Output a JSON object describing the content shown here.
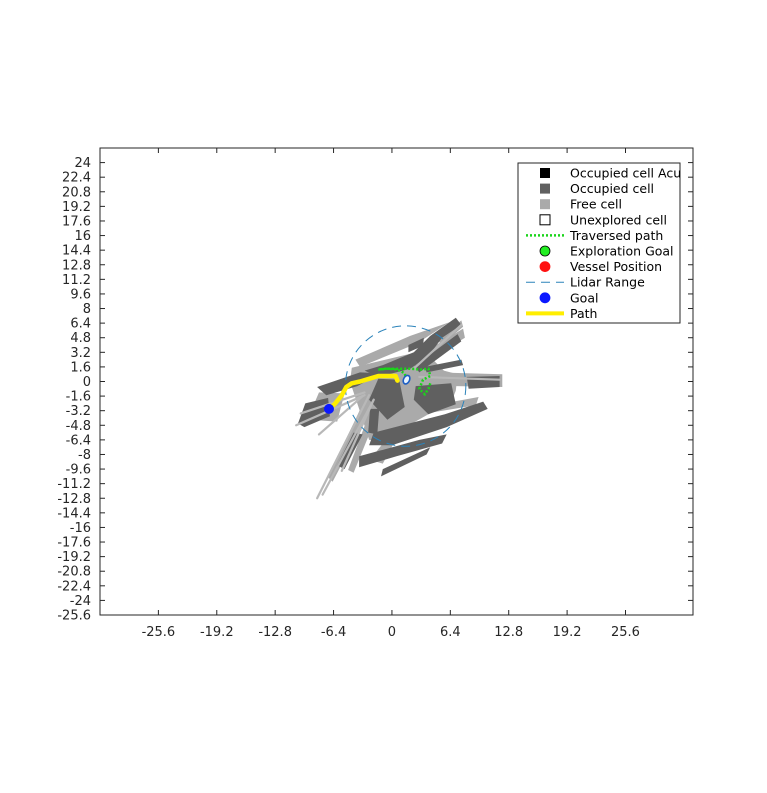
{
  "chart_data": {
    "type": "scatter",
    "title": "",
    "xlabel": "",
    "ylabel": "",
    "xlim": [
      -32,
      33
    ],
    "ylim": [
      -25.6,
      25.6
    ],
    "xticks": [
      "-25.6",
      "-19.2",
      "-12.8",
      "-6.4",
      "0",
      "6.4",
      "12.8",
      "19.2",
      "25.6"
    ],
    "xtick_values": [
      -25.6,
      -19.2,
      -12.8,
      -6.4,
      0,
      6.4,
      12.8,
      19.2,
      25.6
    ],
    "yticks": [
      "24",
      "22.4",
      "20.8",
      "19.2",
      "17.6",
      "16",
      "14.4",
      "12.8",
      "11.2",
      "9.6",
      "8",
      "6.4",
      "4.8",
      "3.2",
      "1.6",
      "0",
      "-1.6",
      "-3.2",
      "-4.8",
      "-6.4",
      "-8",
      "-9.6",
      "-11.2",
      "-12.8",
      "-14.4",
      "-16",
      "-17.6",
      "-19.2",
      "-20.8",
      "-22.4",
      "-24",
      "-25.6"
    ],
    "ytick_values": [
      24,
      22.4,
      20.8,
      19.2,
      17.6,
      16,
      14.4,
      12.8,
      11.2,
      9.6,
      8,
      6.4,
      4.8,
      3.2,
      1.6,
      0,
      -1.6,
      -3.2,
      -4.8,
      -6.4,
      -8,
      -9.6,
      -11.2,
      -12.8,
      -14.4,
      -16,
      -17.6,
      -19.2,
      -20.8,
      -22.4,
      -24,
      -25.6
    ],
    "grid": false,
    "legend_position": "top-right",
    "legend": [
      {
        "label": "Occupied cell Acu",
        "kind": "square",
        "color": "#000000"
      },
      {
        "label": "Occupied cell",
        "kind": "square",
        "color": "#606060"
      },
      {
        "label": "Free cell",
        "kind": "square",
        "color": "#aaaaaa"
      },
      {
        "label": "Unexplored cell",
        "kind": "square-open",
        "color": "#ffffff"
      },
      {
        "label": "Traversed path",
        "kind": "dotted-line",
        "color": "#1bd41b"
      },
      {
        "label": "Exploration Goal",
        "kind": "circle",
        "color": "#22ee22"
      },
      {
        "label": "Vessel Position",
        "kind": "circle",
        "color": "#ff1111"
      },
      {
        "label": "Lidar Range",
        "kind": "dashed-line",
        "color": "#2b83ba"
      },
      {
        "label": "Goal",
        "kind": "circle",
        "color": "#0b18ff"
      },
      {
        "label": "Path",
        "kind": "line",
        "color": "#ffee00"
      }
    ],
    "series": [
      {
        "name": "Traversed path",
        "color": "#1bd41b",
        "points": [
          [
            1.6,
            0.2
          ],
          [
            1.4,
            0.9
          ],
          [
            0.6,
            1.3
          ],
          [
            -0.5,
            1.4
          ],
          [
            -1.5,
            1.3
          ],
          [
            -0.8,
            1.4
          ],
          [
            0.5,
            1.4
          ],
          [
            2,
            1.4
          ],
          [
            3.2,
            1.3
          ],
          [
            4,
            1.4
          ],
          [
            4.2,
            0.6
          ],
          [
            3.4,
            0.2
          ],
          [
            3.0,
            -0.8
          ],
          [
            3.6,
            -1.4
          ],
          [
            4.0,
            -0.8
          ],
          [
            4.2,
            -0.2
          ]
        ]
      },
      {
        "name": "Path",
        "color": "#ffee00",
        "points": [
          [
            0.6,
            0.1
          ],
          [
            0.4,
            0.6
          ],
          [
            -1.5,
            0.6
          ],
          [
            -2.5,
            0.3
          ],
          [
            -3.5,
            0.0
          ],
          [
            -4.4,
            -0.2
          ],
          [
            -5.0,
            -0.6
          ],
          [
            -5.5,
            -1.5
          ],
          [
            -6.3,
            -2.5
          ],
          [
            -6.9,
            -3.0
          ]
        ]
      },
      {
        "name": "Lidar Range",
        "color": "#2b83ba",
        "center": [
          1.5,
          -0.5
        ],
        "radius": 6.6
      },
      {
        "name": "Goal",
        "color": "#0b18ff",
        "points": [
          [
            -6.9,
            -3.0
          ]
        ]
      },
      {
        "name": "Vessel",
        "color": "#1d5ec4",
        "points": [
          [
            1.6,
            0.2
          ]
        ]
      }
    ],
    "occupancy": {
      "occupied_color": "#606060",
      "free_color": "#aaaaaa",
      "free_cells": [
        [
          [
            -4.4,
            1.5
          ],
          [
            3.5,
            3.4
          ],
          [
            5.7,
            1.2
          ],
          [
            7.2,
            0.8
          ],
          [
            7.0,
            -1.0
          ],
          [
            6.6,
            -2.0
          ],
          [
            4.5,
            -3.3
          ],
          [
            1.5,
            -5.0
          ],
          [
            -0.5,
            -6.6
          ],
          [
            -2.5,
            -6.4
          ],
          [
            -3.6,
            -3.0
          ],
          [
            -4.6,
            0.0
          ]
        ],
        [
          [
            1.4,
            1.1
          ],
          [
            12.1,
            0.8
          ],
          [
            12.1,
            -0.6
          ],
          [
            1.4,
            -0.4
          ]
        ],
        [
          [
            -2.8,
            -1.6
          ],
          [
            -2.0,
            -2.4
          ],
          [
            -6.5,
            -11.0
          ],
          [
            -7.0,
            -10.5
          ]
        ],
        [
          [
            -2.0,
            -2.2
          ],
          [
            -1.2,
            -2.6
          ],
          [
            -4.2,
            -10.0
          ],
          [
            -4.8,
            -9.7
          ]
        ],
        [
          [
            -4.0,
            2.4
          ],
          [
            2.0,
            5.0
          ],
          [
            6.3,
            6.5
          ],
          [
            2.8,
            4.2
          ],
          [
            -3.5,
            1.6
          ]
        ],
        [
          [
            4.0,
            3.5
          ],
          [
            7.8,
            5.8
          ],
          [
            8.0,
            4.8
          ],
          [
            4.6,
            2.7
          ]
        ],
        [
          [
            -8.0,
            -1.2
          ],
          [
            -5.2,
            -1.3
          ],
          [
            -6.0,
            -4.4
          ],
          [
            -9.0,
            -4.2
          ],
          [
            -8.6,
            -2.6
          ]
        ],
        [
          [
            -0.7,
            -6.4
          ],
          [
            0.4,
            -6.4
          ],
          [
            -1.0,
            -9.0
          ],
          [
            -2.4,
            -8.6
          ]
        ],
        [
          [
            3.5,
            -2.8
          ],
          [
            9.5,
            -1.7
          ],
          [
            9.2,
            -2.6
          ],
          [
            3.2,
            -3.6
          ]
        ],
        [
          [
            5.0,
            4.6
          ],
          [
            7.6,
            6.7
          ],
          [
            7.8,
            6.0
          ],
          [
            5.4,
            4.0
          ]
        ]
      ],
      "occupied_cells": [
        [
          [
            -1.5,
            0.5
          ],
          [
            2.0,
            1.4
          ],
          [
            4.0,
            2.8
          ],
          [
            5.5,
            4.8
          ],
          [
            7.6,
            6.2
          ],
          [
            7.0,
            7.0
          ],
          [
            4.2,
            5.0
          ],
          [
            2.4,
            3.2
          ],
          [
            -1.0,
            1.8
          ],
          [
            -3.0,
            1.2
          ]
        ],
        [
          [
            2.5,
            1.7
          ],
          [
            7.2,
            5.2
          ],
          [
            7.6,
            4.4
          ],
          [
            3.0,
            1.0
          ]
        ],
        [
          [
            1.8,
            4.0
          ],
          [
            3.5,
            4.8
          ],
          [
            3.4,
            3.9
          ],
          [
            1.8,
            3.2
          ]
        ],
        [
          [
            -8.2,
            -0.6
          ],
          [
            -3.5,
            1.0
          ],
          [
            -1.2,
            0.9
          ],
          [
            -3.8,
            -0.5
          ],
          [
            -7.2,
            -1.5
          ]
        ],
        [
          [
            -9.5,
            -2.4
          ],
          [
            -7.0,
            -1.8
          ],
          [
            -6.8,
            -3.8
          ],
          [
            -9.6,
            -5.0
          ],
          [
            -10.3,
            -4.6
          ]
        ],
        [
          [
            -2.5,
            -2.0
          ],
          [
            -1.5,
            0.3
          ],
          [
            0.8,
            0.2
          ],
          [
            1.4,
            -2.8
          ],
          [
            -0.5,
            -4.2
          ]
        ],
        [
          [
            2.6,
            -0.5
          ],
          [
            6.5,
            -0.2
          ],
          [
            7.0,
            -2.5
          ],
          [
            4.0,
            -3.6
          ],
          [
            2.4,
            -2.0
          ]
        ],
        [
          [
            8.2,
            0.5
          ],
          [
            11.8,
            0.6
          ],
          [
            11.8,
            -0.6
          ],
          [
            8.4,
            -0.8
          ]
        ],
        [
          [
            -2.0,
            -5.6
          ],
          [
            5.8,
            -3.6
          ],
          [
            10.0,
            -2.2
          ],
          [
            10.5,
            -3.0
          ],
          [
            6.0,
            -5.0
          ],
          [
            0.0,
            -7.0
          ],
          [
            -2.5,
            -7.0
          ]
        ],
        [
          [
            -3.6,
            -8.2
          ],
          [
            3.0,
            -6.4
          ],
          [
            6.0,
            -5.8
          ],
          [
            5.5,
            -6.8
          ],
          [
            0.5,
            -8.2
          ],
          [
            -3.6,
            -9.4
          ]
        ],
        [
          [
            -1.0,
            -9.6
          ],
          [
            4.2,
            -7.2
          ],
          [
            3.8,
            -8.0
          ],
          [
            -1.2,
            -10.4
          ]
        ],
        [
          [
            -2.4,
            -3.0
          ],
          [
            -1.4,
            -3.0
          ],
          [
            -1.6,
            -5.8
          ],
          [
            -2.6,
            -5.6
          ]
        ],
        [
          [
            -4.2,
            -5.6
          ],
          [
            -3.2,
            -5.8
          ],
          [
            -5.2,
            -9.6
          ],
          [
            -6.0,
            -9.2
          ]
        ],
        [
          [
            3.6,
            1.6
          ],
          [
            7.6,
            2.4
          ],
          [
            7.8,
            1.8
          ],
          [
            3.8,
            1.0
          ]
        ]
      ]
    },
    "rays": [
      {
        "from": [
          -2.5,
          -1.5
        ],
        "to": [
          -8.2,
          -12.8
        ]
      },
      {
        "from": [
          -2.0,
          -2.0
        ],
        "to": [
          -7.6,
          -12.4
        ]
      },
      {
        "from": [
          -3.0,
          -1.5
        ],
        "to": [
          -10.5,
          -4.8
        ]
      },
      {
        "from": [
          -3.0,
          -1.2
        ],
        "to": [
          -10.0,
          -3.5
        ]
      },
      {
        "from": [
          -3.2,
          -1.6
        ],
        "to": [
          -8.0,
          -5.8
        ]
      },
      {
        "from": [
          -2.0,
          -2.0
        ],
        "to": [
          -5.5,
          -9.8
        ]
      },
      {
        "from": [
          2.5,
          1.5
        ],
        "to": [
          7.6,
          6.2
        ]
      },
      {
        "from": [
          3.0,
          0.5
        ],
        "to": [
          11.8,
          0.2
        ]
      }
    ]
  }
}
